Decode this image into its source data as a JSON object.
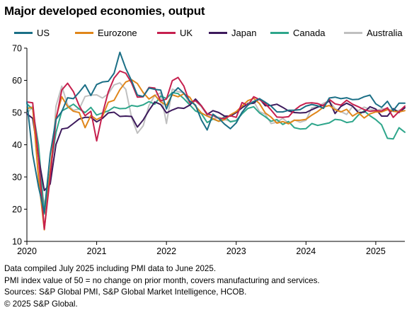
{
  "title": "Major developed economies, output",
  "notes": [
    "Data compiled July 2025 including PMI data to June 2025.",
    "PMI index value of 50 = no change on prior month, covers manufacturing and services.",
    "Sources: S&P Global PMI, S&P Global Market Intelligence, HCOB.",
    "© 2025 S&P Global."
  ],
  "chart_data": {
    "type": "line",
    "title": "Major developed economies, output",
    "ylim": [
      10,
      70
    ],
    "yticks": [
      10,
      20,
      30,
      40,
      50,
      60,
      70
    ],
    "xlim": [
      "2020-01",
      "2025-06"
    ],
    "xticks": [
      "2020",
      "2021",
      "2022",
      "2023",
      "2024",
      "2025"
    ],
    "grid": false,
    "legend": "top",
    "series": [
      {
        "name": "US",
        "color": "#1b6f86",
        "values": [
          53.3,
          37.0,
          27.0,
          19.0,
          37.0,
          47.9,
          50.3,
          54.6,
          54.3,
          56.3,
          58.6,
          55.3,
          58.7,
          59.5,
          59.7,
          62.2,
          68.7,
          63.7,
          59.9,
          55.4,
          55.0,
          57.6,
          57.2,
          57.0,
          51.1,
          55.9,
          57.7,
          56.0,
          53.6,
          52.3,
          47.7,
          44.6,
          49.5,
          48.2,
          46.4,
          45.0,
          46.8,
          50.1,
          52.3,
          53.4,
          54.3,
          53.2,
          52.0,
          50.2,
          50.2,
          50.7,
          50.7,
          50.9,
          52.0,
          52.5,
          52.1,
          51.3,
          54.5,
          54.8,
          54.3,
          54.6,
          54.0,
          54.1,
          54.9,
          55.4,
          52.7,
          51.6,
          53.5,
          50.6,
          52.9,
          52.9
        ]
      },
      {
        "name": "Eurozone",
        "color": "#e0861a",
        "values": [
          51.3,
          51.6,
          29.7,
          13.6,
          31.9,
          48.5,
          54.9,
          51.9,
          50.4,
          50.0,
          45.3,
          49.1,
          47.8,
          48.8,
          53.2,
          53.8,
          57.1,
          59.5,
          60.2,
          59.0,
          56.2,
          54.2,
          55.4,
          53.3,
          52.3,
          55.5,
          54.9,
          55.8,
          54.8,
          52.0,
          49.9,
          48.9,
          48.1,
          47.3,
          47.8,
          49.3,
          50.3,
          52.0,
          53.7,
          54.4,
          52.8,
          49.9,
          48.6,
          46.7,
          47.2,
          46.5,
          47.6,
          47.6,
          47.9,
          49.2,
          50.3,
          51.7,
          52.2,
          50.9,
          50.2,
          51.0,
          48.9,
          50.0,
          48.3,
          49.6,
          50.2,
          50.2,
          50.9,
          50.4,
          50.2,
          50.6
        ]
      },
      {
        "name": "UK",
        "color": "#c6204e",
        "values": [
          53.3,
          53.0,
          36.0,
          13.8,
          30.0,
          47.7,
          57.0,
          59.1,
          56.5,
          52.1,
          49.0,
          50.4,
          41.2,
          49.6,
          56.4,
          60.7,
          62.9,
          62.2,
          59.2,
          54.8,
          54.9,
          57.8,
          57.6,
          53.6,
          54.2,
          59.9,
          60.9,
          58.2,
          53.1,
          53.7,
          52.1,
          49.6,
          49.1,
          48.2,
          48.2,
          49.0,
          48.5,
          53.1,
          52.2,
          54.9,
          54.0,
          52.8,
          50.8,
          48.6,
          48.5,
          48.7,
          50.7,
          52.1,
          52.9,
          53.0,
          52.8,
          52.1,
          54.1,
          52.7,
          52.3,
          53.8,
          52.6,
          51.8,
          50.9,
          50.4,
          50.6,
          50.5,
          51.5,
          48.5,
          50.3,
          52.0
        ]
      },
      {
        "name": "Japan",
        "color": "#3d1a5c",
        "values": [
          49.6,
          48.2,
          36.2,
          25.8,
          27.8,
          40.1,
          44.9,
          45.2,
          46.6,
          48.0,
          48.5,
          48.5,
          47.1,
          48.2,
          49.9,
          50.1,
          48.8,
          48.9,
          48.8,
          45.5,
          47.7,
          50.7,
          53.3,
          52.5,
          49.9,
          50.8,
          51.5,
          51.3,
          52.3,
          54.2,
          52.1,
          49.4,
          50.6,
          50.0,
          48.9,
          48.9,
          50.0,
          51.5,
          52.7,
          52.9,
          54.3,
          52.1,
          52.2,
          52.6,
          51.6,
          50.5,
          50.0,
          49.9,
          50.0,
          50.9,
          51.7,
          52.3,
          53.6,
          49.7,
          51.9,
          52.9,
          52.0,
          50.0,
          50.1,
          51.8,
          51.1,
          48.9,
          48.9,
          51.2,
          50.0,
          51.5
        ]
      },
      {
        "name": "Canada",
        "color": "#2ea68b",
        "values": [
          52.7,
          51.0,
          40.0,
          18.5,
          32.0,
          43.8,
          50.5,
          51.5,
          52.6,
          51.1,
          50.0,
          51.6,
          49.2,
          49.9,
          50.5,
          51.7,
          51.2,
          51.3,
          52.2,
          51.9,
          52.4,
          53.4,
          52.6,
          55.1,
          54.4,
          56.2,
          55.9,
          54.3,
          52.4,
          50.5,
          49.7,
          46.9,
          48.0,
          47.3,
          48.8,
          47.1,
          47.5,
          49.6,
          51.3,
          51.8,
          49.9,
          48.7,
          47.3,
          47.8,
          46.3,
          47.2,
          45.3,
          44.9,
          45.0,
          46.6,
          46.0,
          46.4,
          46.8,
          47.9,
          47.7,
          46.9,
          47.2,
          49.2,
          50.5,
          49.0,
          47.8,
          46.2,
          42.0,
          41.8,
          45.3,
          43.9
        ]
      },
      {
        "name": "Australia",
        "color": "#c0c0c0",
        "values": [
          49.6,
          52.0,
          30.0,
          21.7,
          28.1,
          52.0,
          58.2,
          52.4,
          50.7,
          51.1,
          55.0,
          55.4,
          55.5,
          54.5,
          55.8,
          58.6,
          59.2,
          57.2,
          48.5,
          43.6,
          45.9,
          52.2,
          55.3,
          56.1,
          46.6,
          57.3,
          56.5,
          56.1,
          52.6,
          53.6,
          51.8,
          49.4,
          48.0,
          48.6,
          47.8,
          47.3,
          47.5,
          49.9,
          53.0,
          53.5,
          50.3,
          49.5,
          46.6,
          47.0,
          48.2,
          46.7,
          47.7,
          47.0,
          47.6,
          51.5,
          51.8,
          52.9,
          53.6,
          51.3,
          50.3,
          49.4,
          51.9,
          50.6,
          51.7,
          51.0,
          50.6,
          51.1,
          51.2,
          50.4,
          50.7,
          51.5
        ]
      }
    ]
  }
}
